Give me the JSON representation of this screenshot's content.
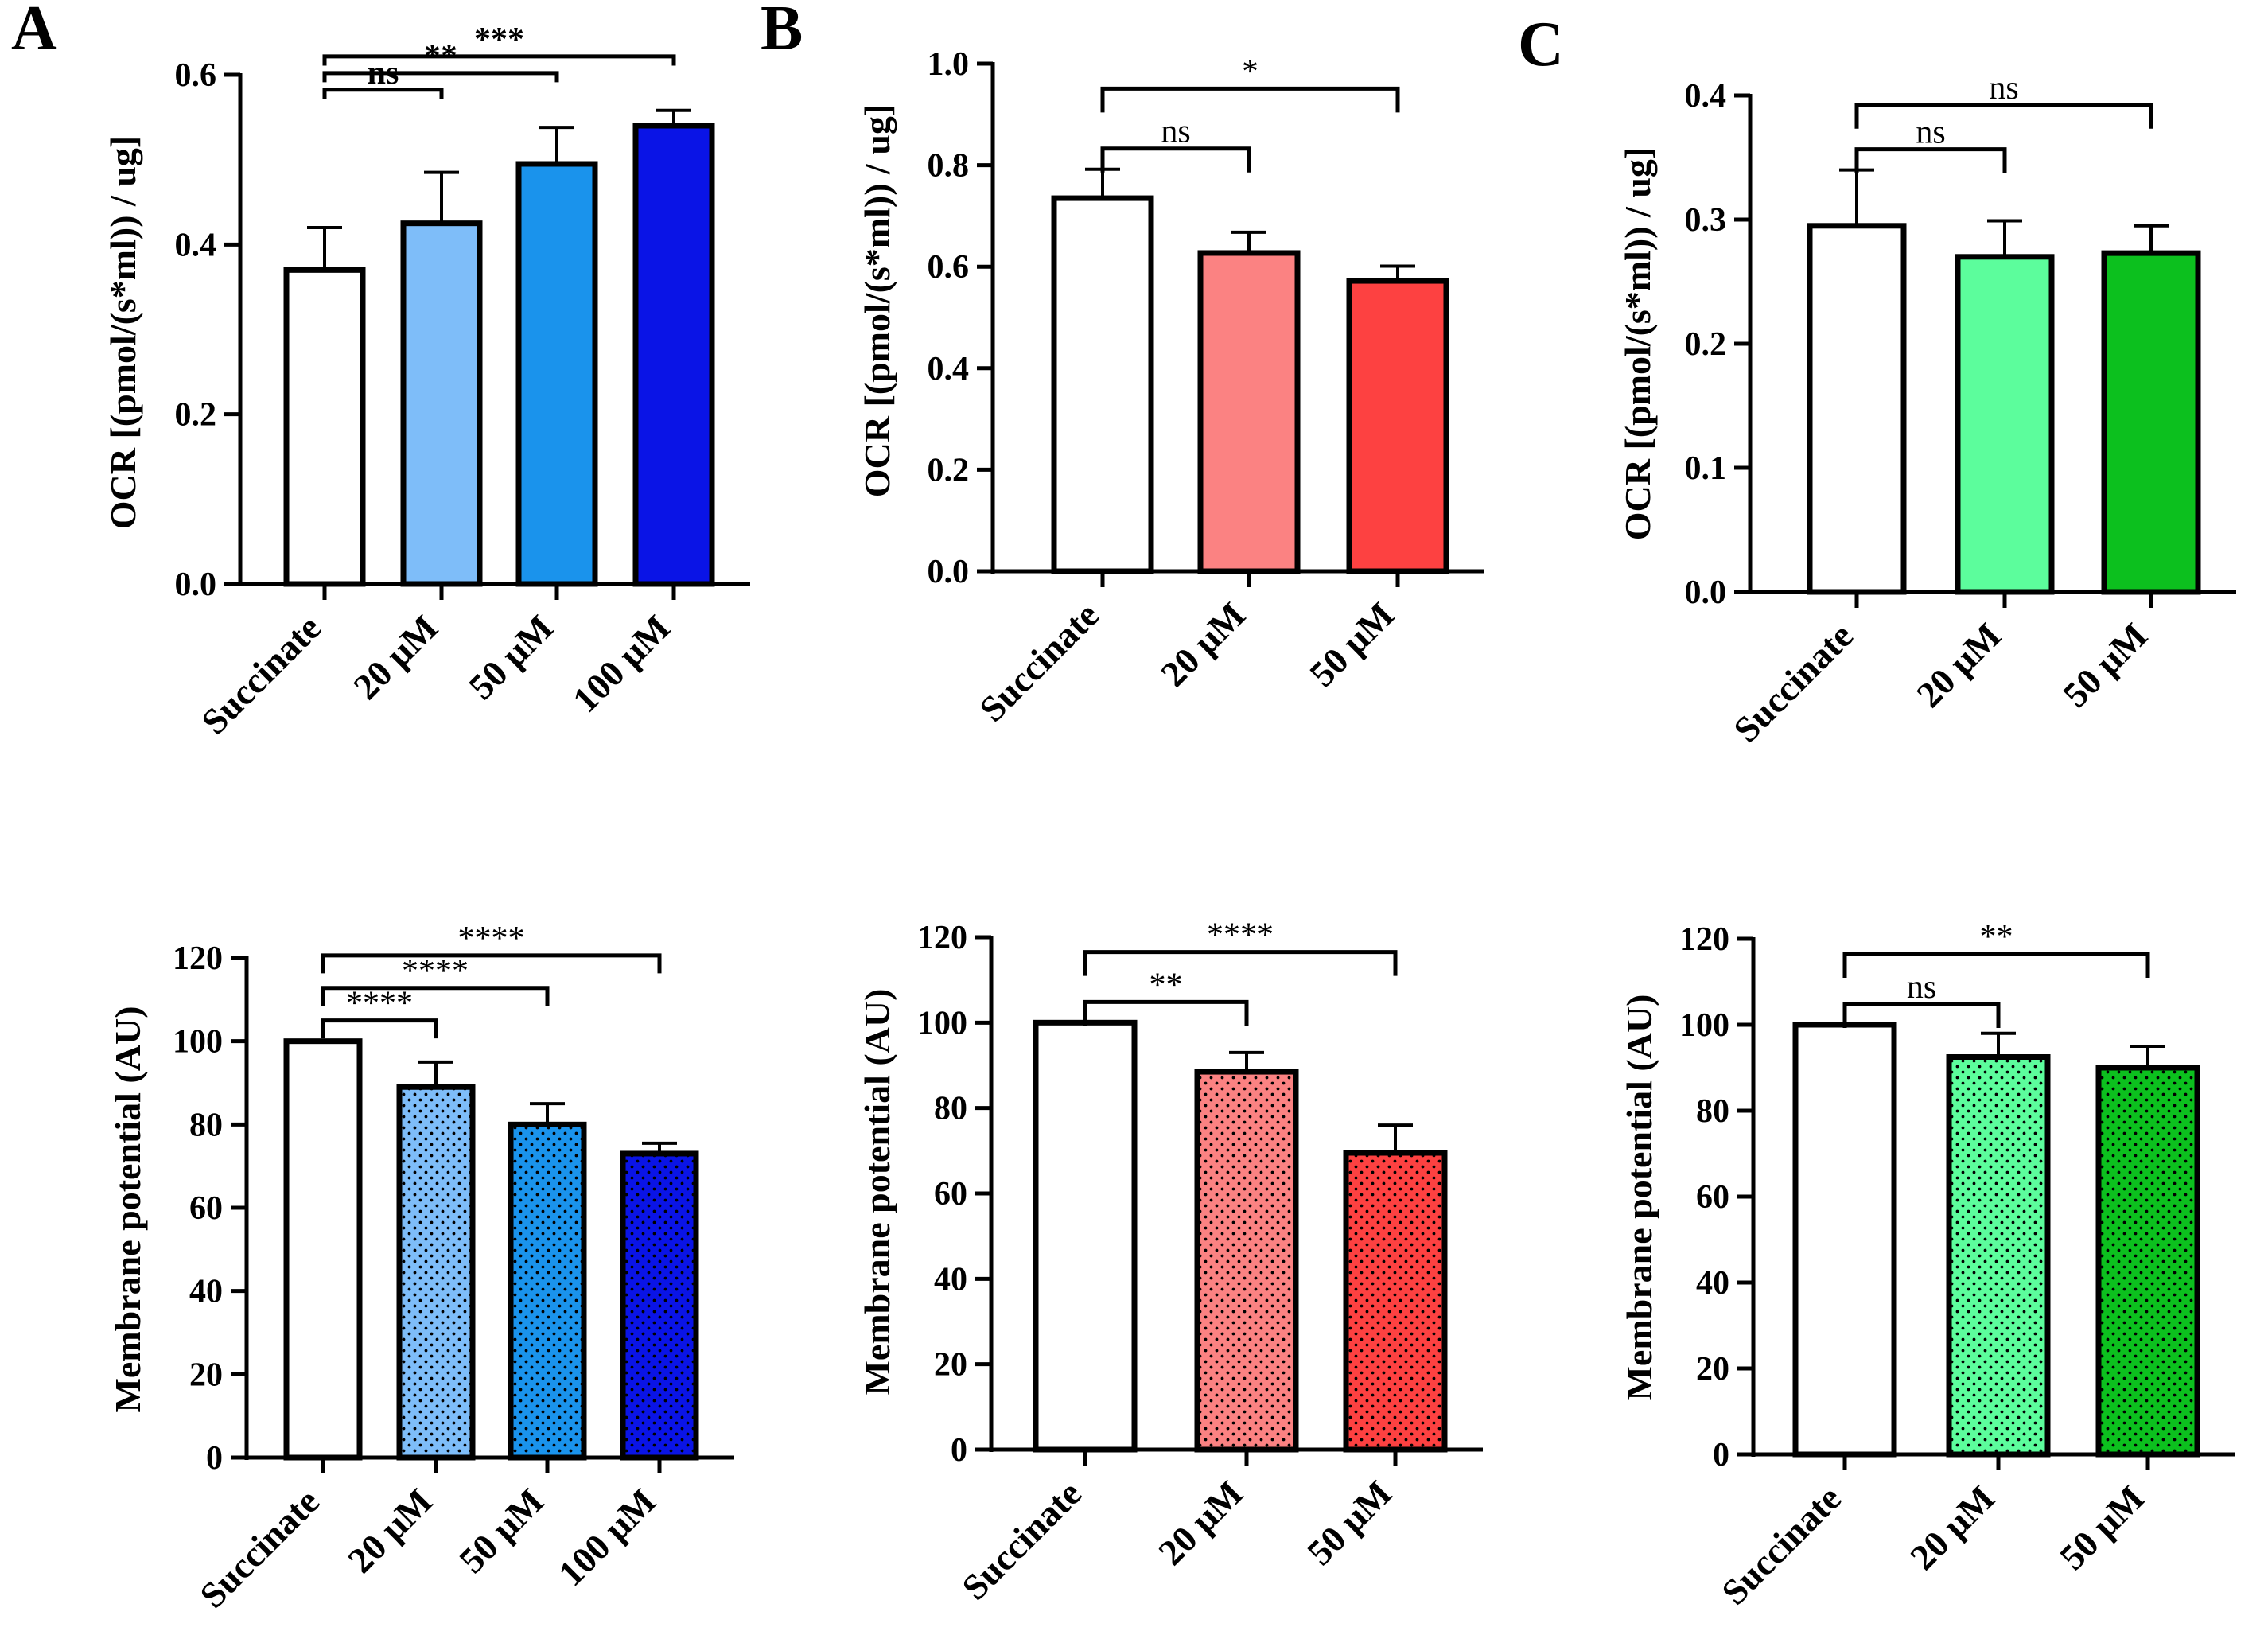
{
  "panels": [
    {
      "letter": "A"
    },
    {
      "letter": "B"
    },
    {
      "letter": "C"
    }
  ],
  "colors": {
    "blue": [
      "#ffffff",
      "#7ebdf9",
      "#1a93ec",
      "#0a14e6"
    ],
    "red": [
      "#ffffff",
      "#fb8282",
      "#fd4141"
    ],
    "green": [
      "#ffffff",
      "#5cfd9c",
      "#0cc01e"
    ]
  },
  "chart_data": [
    {
      "id": "A-ocr",
      "panel": "A",
      "type": "bar",
      "palette": "blue",
      "pattern": false,
      "ylabel": "OCR [(pmol/(s*ml)) / ug]",
      "categories": [
        "Succinate",
        "20 μM",
        "50 μM",
        "100 μM"
      ],
      "values": [
        0.37,
        0.425,
        0.495,
        0.54
      ],
      "errors": [
        0.05,
        0.06,
        0.043,
        0.018
      ],
      "ylim": [
        0,
        0.6
      ],
      "yticks": [
        "0.0",
        "0.2",
        "0.4",
        "0.6"
      ],
      "yticks_values": [
        0,
        0.2,
        0.4,
        0.6
      ],
      "significance": [
        {
          "from": 0,
          "to": 1,
          "label": "ns",
          "bold": true
        },
        {
          "from": 0,
          "to": 2,
          "label": "**",
          "bold": true
        },
        {
          "from": 0,
          "to": 3,
          "label": "***",
          "bold": true
        }
      ]
    },
    {
      "id": "B-ocr",
      "panel": "B",
      "type": "bar",
      "palette": "red",
      "pattern": false,
      "ylabel": "OCR [(pmol/(s*ml)) / ug]",
      "categories": [
        "Succinate",
        "20 μM",
        "50 μM"
      ],
      "values": [
        0.735,
        0.627,
        0.572
      ],
      "errors": [
        0.057,
        0.041,
        0.029
      ],
      "ylim": [
        0,
        1.0
      ],
      "yticks": [
        "0.0",
        "0.2",
        "0.4",
        "0.6",
        "0.8",
        "1.0"
      ],
      "yticks_values": [
        0,
        0.2,
        0.4,
        0.6,
        0.8,
        1.0
      ],
      "significance": [
        {
          "from": 0,
          "to": 1,
          "label": "ns",
          "bold": false
        },
        {
          "from": 0,
          "to": 2,
          "label": "*",
          "bold": false
        }
      ]
    },
    {
      "id": "C-ocr",
      "panel": "C",
      "type": "bar",
      "palette": "green",
      "pattern": false,
      "ylabel": "OCR [(pmol/(s*ml)) / ug]",
      "categories": [
        "Succinate",
        "20 μM",
        "50 μM"
      ],
      "values": [
        0.295,
        0.27,
        0.273
      ],
      "errors": [
        0.045,
        0.029,
        0.022
      ],
      "ylim": [
        0,
        0.4
      ],
      "yticks": [
        "0.0",
        "0.1",
        "0.2",
        "0.3",
        "0.4"
      ],
      "yticks_values": [
        0,
        0.1,
        0.2,
        0.3,
        0.4
      ],
      "significance": [
        {
          "from": 0,
          "to": 1,
          "label": "ns",
          "bold": false
        },
        {
          "from": 0,
          "to": 2,
          "label": "ns",
          "bold": false
        }
      ]
    },
    {
      "id": "A-mp",
      "panel": "A",
      "type": "bar",
      "palette": "blue",
      "pattern": true,
      "ylabel": "Membrane potential (AU)",
      "categories": [
        "Succinate",
        "20 μM",
        "50 μM",
        "100 μM"
      ],
      "values": [
        100,
        89,
        80,
        73
      ],
      "errors": [
        0,
        6,
        5,
        2.5
      ],
      "ylim": [
        0,
        120
      ],
      "yticks": [
        "0",
        "20",
        "40",
        "60",
        "80",
        "100",
        "120"
      ],
      "yticks_values": [
        0,
        20,
        40,
        60,
        80,
        100,
        120
      ],
      "significance": [
        {
          "from": 0,
          "to": 1,
          "label": "****",
          "bold": false
        },
        {
          "from": 0,
          "to": 2,
          "label": "****",
          "bold": false
        },
        {
          "from": 0,
          "to": 3,
          "label": "****",
          "bold": false
        }
      ]
    },
    {
      "id": "B-mp",
      "panel": "B",
      "type": "bar",
      "palette": "red",
      "pattern": true,
      "ylabel": "Membrane potential (AU)",
      "categories": [
        "Succinate",
        "20 μM",
        "50 μM"
      ],
      "values": [
        100,
        88.5,
        69.5
      ],
      "errors": [
        0,
        4.5,
        6.5
      ],
      "ylim": [
        0,
        120
      ],
      "yticks": [
        "0",
        "20",
        "40",
        "60",
        "80",
        "100",
        "120"
      ],
      "yticks_values": [
        0,
        20,
        40,
        60,
        80,
        100,
        120
      ],
      "significance": [
        {
          "from": 0,
          "to": 1,
          "label": "**",
          "bold": false
        },
        {
          "from": 0,
          "to": 2,
          "label": "****",
          "bold": false
        }
      ]
    },
    {
      "id": "C-mp",
      "panel": "C",
      "type": "bar",
      "palette": "green",
      "pattern": true,
      "ylabel": "Membrane potential (AU)",
      "categories": [
        "Succinate",
        "20 μM",
        "50 μM"
      ],
      "values": [
        100,
        92.5,
        90
      ],
      "errors": [
        0,
        5.5,
        5
      ],
      "ylim": [
        0,
        120
      ],
      "yticks": [
        "0",
        "20",
        "40",
        "60",
        "80",
        "100",
        "120"
      ],
      "yticks_values": [
        0,
        20,
        40,
        60,
        80,
        100,
        120
      ],
      "significance": [
        {
          "from": 0,
          "to": 1,
          "label": "ns",
          "bold": false
        },
        {
          "from": 0,
          "to": 2,
          "label": "**",
          "bold": false
        }
      ]
    }
  ]
}
